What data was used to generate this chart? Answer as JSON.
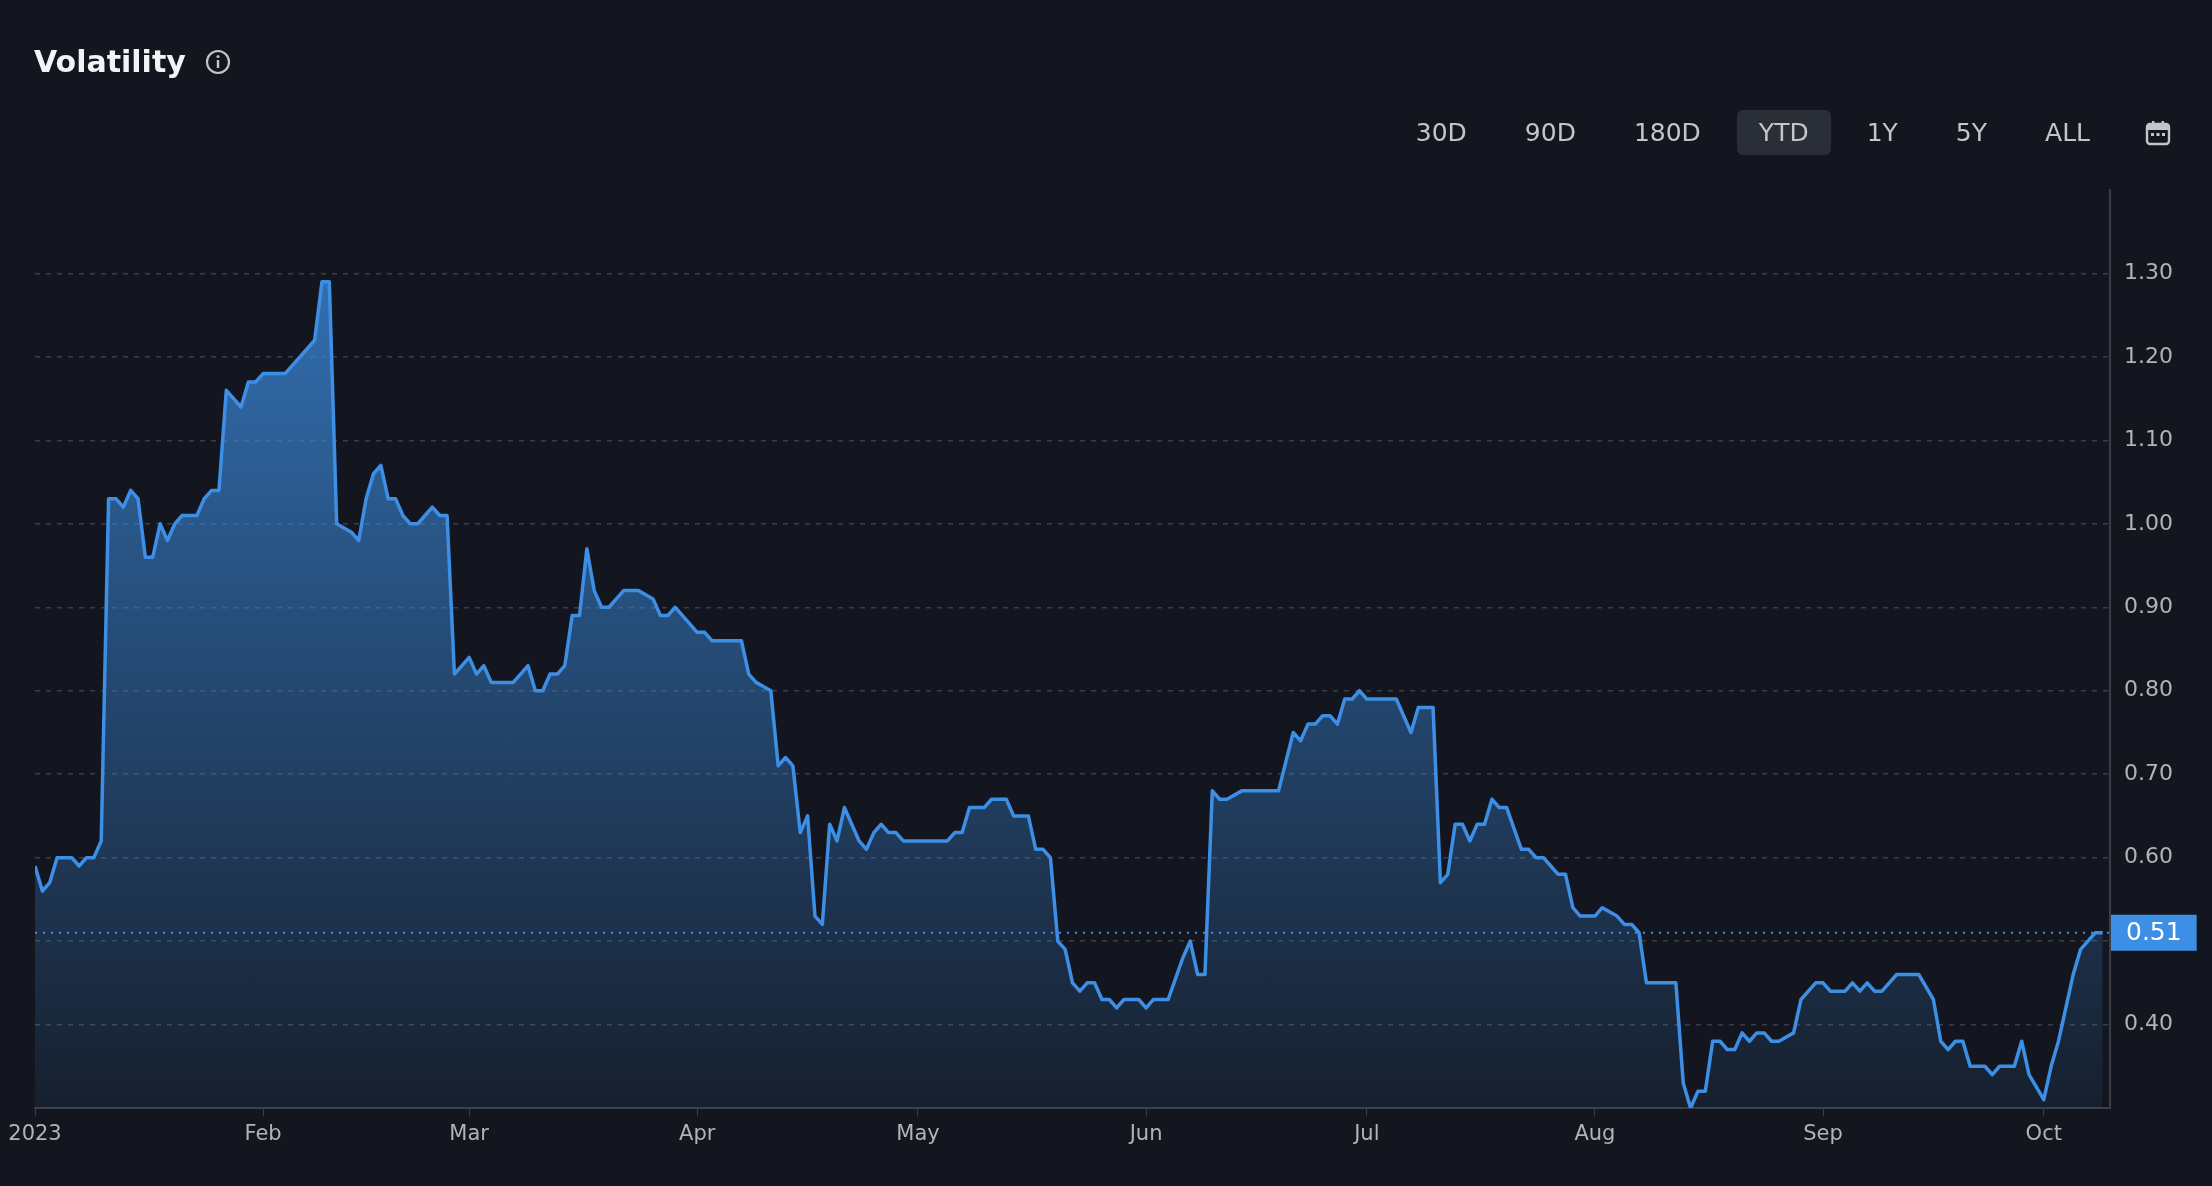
{
  "chart_data": {
    "type": "area",
    "title": "Volatility",
    "color": "#3d8fe6",
    "annotations": [
      "30D",
      "90D",
      "180D",
      "YTD",
      "1Y",
      "5Y",
      "ALL"
    ],
    "x": [
      "2023-01-01",
      "2023-01-02",
      "2023-01-03",
      "2023-01-04",
      "2023-01-06",
      "2023-01-07",
      "2023-01-08",
      "2023-01-09",
      "2023-01-10",
      "2023-01-11",
      "2023-01-12",
      "2023-01-13",
      "2023-01-14",
      "2023-01-15",
      "2023-01-16",
      "2023-01-17",
      "2023-01-18",
      "2023-01-19",
      "2023-01-20",
      "2023-01-21",
      "2023-01-23",
      "2023-01-24",
      "2023-01-25",
      "2023-01-26",
      "2023-01-27",
      "2023-01-28",
      "2023-01-29",
      "2023-01-30",
      "2023-01-31",
      "2023-02-01",
      "2023-02-03",
      "2023-02-04",
      "2023-02-06",
      "2023-02-07",
      "2023-02-08",
      "2023-02-09",
      "2023-02-10",
      "2023-02-11",
      "2023-02-13",
      "2023-02-14",
      "2023-02-15",
      "2023-02-16",
      "2023-02-17",
      "2023-02-18",
      "2023-02-19",
      "2023-02-20",
      "2023-02-21",
      "2023-02-22",
      "2023-02-23",
      "2023-02-24",
      "2023-02-25",
      "2023-02-26",
      "2023-02-27",
      "2023-03-01",
      "2023-03-02",
      "2023-03-03",
      "2023-03-04",
      "2023-03-05",
      "2023-03-06",
      "2023-03-07",
      "2023-03-08",
      "2023-03-09",
      "2023-03-10",
      "2023-03-11",
      "2023-03-12",
      "2023-03-13",
      "2023-03-14",
      "2023-03-15",
      "2023-03-16",
      "2023-03-17",
      "2023-03-18",
      "2023-03-19",
      "2023-03-20",
      "2023-03-21",
      "2023-03-22",
      "2023-03-23",
      "2023-03-24",
      "2023-03-26",
      "2023-03-27",
      "2023-03-28",
      "2023-03-29",
      "2023-03-30",
      "2023-04-01",
      "2023-04-02",
      "2023-04-03",
      "2023-04-04",
      "2023-04-05",
      "2023-04-07",
      "2023-04-08",
      "2023-04-09",
      "2023-04-11",
      "2023-04-12",
      "2023-04-13",
      "2023-04-14",
      "2023-04-15",
      "2023-04-16",
      "2023-04-17",
      "2023-04-18",
      "2023-04-19",
      "2023-04-20",
      "2023-04-21",
      "2023-04-22",
      "2023-04-23",
      "2023-04-24",
      "2023-04-25",
      "2023-04-26",
      "2023-04-27",
      "2023-04-28",
      "2023-04-29",
      "2023-04-30",
      "2023-05-02",
      "2023-05-03",
      "2023-05-04",
      "2023-05-05",
      "2023-05-06",
      "2023-05-07",
      "2023-05-08",
      "2023-05-10",
      "2023-05-11",
      "2023-05-13",
      "2023-05-14",
      "2023-05-15",
      "2023-05-16",
      "2023-05-17",
      "2023-05-18",
      "2023-05-19",
      "2023-05-20",
      "2023-05-21",
      "2023-05-22",
      "2023-05-23",
      "2023-05-24",
      "2023-05-25",
      "2023-05-26",
      "2023-05-27",
      "2023-05-28",
      "2023-05-29",
      "2023-05-31",
      "2023-06-01",
      "2023-06-02",
      "2023-06-03",
      "2023-06-04",
      "2023-06-06",
      "2023-06-07",
      "2023-06-08",
      "2023-06-09",
      "2023-06-10",
      "2023-06-11",
      "2023-06-12",
      "2023-06-14",
      "2023-06-15",
      "2023-06-16",
      "2023-06-18",
      "2023-06-19",
      "2023-06-21",
      "2023-06-22",
      "2023-06-23",
      "2023-06-24",
      "2023-06-25",
      "2023-06-26",
      "2023-06-27",
      "2023-06-28",
      "2023-06-29",
      "2023-06-30",
      "2023-07-01",
      "2023-07-02",
      "2023-07-03",
      "2023-07-05",
      "2023-07-07",
      "2023-07-08",
      "2023-07-10",
      "2023-07-11",
      "2023-07-12",
      "2023-07-13",
      "2023-07-14",
      "2023-07-15",
      "2023-07-16",
      "2023-07-17",
      "2023-07-18",
      "2023-07-19",
      "2023-07-20",
      "2023-07-22",
      "2023-07-23",
      "2023-07-24",
      "2023-07-25",
      "2023-07-26",
      "2023-07-27",
      "2023-07-28",
      "2023-07-29",
      "2023-07-30",
      "2023-07-31",
      "2023-08-01",
      "2023-08-02",
      "2023-08-04",
      "2023-08-05",
      "2023-08-06",
      "2023-08-07",
      "2023-08-08",
      "2023-08-10",
      "2023-08-11",
      "2023-08-12",
      "2023-08-13",
      "2023-08-14",
      "2023-08-15",
      "2023-08-16",
      "2023-08-17",
      "2023-08-18",
      "2023-08-19",
      "2023-08-20",
      "2023-08-21",
      "2023-08-22",
      "2023-08-23",
      "2023-08-24",
      "2023-08-25",
      "2023-08-26",
      "2023-08-28",
      "2023-08-29",
      "2023-08-31",
      "2023-09-01",
      "2023-09-02",
      "2023-09-04",
      "2023-09-05",
      "2023-09-06",
      "2023-09-07",
      "2023-09-08",
      "2023-09-09",
      "2023-09-10",
      "2023-09-11",
      "2023-09-12",
      "2023-09-13",
      "2023-09-14",
      "2023-09-16",
      "2023-09-17",
      "2023-09-18",
      "2023-09-19",
      "2023-09-20",
      "2023-09-21",
      "2023-09-22",
      "2023-09-23",
      "2023-09-24",
      "2023-09-25",
      "2023-09-27",
      "2023-09-28",
      "2023-09-29",
      "2023-10-01",
      "2023-10-02",
      "2023-10-03",
      "2023-10-04",
      "2023-10-05",
      "2023-10-06",
      "2023-10-07",
      "2023-10-08",
      "2023-10-09"
    ],
    "values": [
      0.59,
      0.56,
      0.57,
      0.6,
      0.6,
      0.59,
      0.6,
      0.6,
      0.62,
      1.03,
      1.03,
      1.02,
      1.04,
      1.03,
      0.96,
      0.96,
      1.0,
      0.98,
      1.0,
      1.01,
      1.01,
      1.03,
      1.04,
      1.04,
      1.16,
      1.15,
      1.14,
      1.17,
      1.17,
      1.18,
      1.18,
      1.18,
      1.2,
      1.21,
      1.22,
      1.29,
      1.29,
      1.0,
      0.99,
      0.98,
      1.03,
      1.06,
      1.07,
      1.03,
      1.03,
      1.01,
      1.0,
      1.0,
      1.01,
      1.02,
      1.01,
      1.01,
      0.82,
      0.84,
      0.82,
      0.83,
      0.81,
      0.81,
      0.81,
      0.81,
      0.82,
      0.83,
      0.8,
      0.8,
      0.82,
      0.82,
      0.83,
      0.89,
      0.89,
      0.97,
      0.92,
      0.9,
      0.9,
      0.91,
      0.92,
      0.92,
      0.92,
      0.91,
      0.89,
      0.89,
      0.9,
      0.89,
      0.87,
      0.87,
      0.86,
      0.86,
      0.86,
      0.86,
      0.82,
      0.81,
      0.8,
      0.71,
      0.72,
      0.71,
      0.63,
      0.65,
      0.53,
      0.52,
      0.64,
      0.62,
      0.66,
      0.64,
      0.62,
      0.61,
      0.63,
      0.64,
      0.63,
      0.63,
      0.62,
      0.62,
      0.62,
      0.62,
      0.62,
      0.62,
      0.63,
      0.63,
      0.66,
      0.66,
      0.67,
      0.67,
      0.65,
      0.65,
      0.65,
      0.61,
      0.61,
      0.6,
      0.5,
      0.49,
      0.45,
      0.44,
      0.45,
      0.45,
      0.43,
      0.43,
      0.42,
      0.43,
      0.43,
      0.42,
      0.43,
      0.43,
      0.43,
      0.48,
      0.5,
      0.46,
      0.46,
      0.68,
      0.67,
      0.67,
      0.68,
      0.68,
      0.68,
      0.68,
      0.68,
      0.75,
      0.74,
      0.76,
      0.76,
      0.77,
      0.77,
      0.76,
      0.79,
      0.79,
      0.8,
      0.79,
      0.79,
      0.79,
      0.79,
      0.75,
      0.78,
      0.78,
      0.57,
      0.58,
      0.64,
      0.64,
      0.62,
      0.64,
      0.64,
      0.67,
      0.66,
      0.66,
      0.61,
      0.61,
      0.6,
      0.6,
      0.59,
      0.58,
      0.58,
      0.54,
      0.53,
      0.53,
      0.53,
      0.54,
      0.53,
      0.52,
      0.52,
      0.51,
      0.45,
      0.45,
      0.45,
      0.45,
      0.33,
      0.3,
      0.32,
      0.32,
      0.38,
      0.38,
      0.37,
      0.37,
      0.39,
      0.38,
      0.39,
      0.39,
      0.38,
      0.38,
      0.39,
      0.43,
      0.45,
      0.45,
      0.44,
      0.44,
      0.45,
      0.44,
      0.45,
      0.44,
      0.44,
      0.45,
      0.46,
      0.46,
      0.46,
      0.46,
      0.43,
      0.38,
      0.37,
      0.38,
      0.38,
      0.35,
      0.35,
      0.35,
      0.34,
      0.35,
      0.35,
      0.38,
      0.34,
      0.31,
      0.35,
      0.38,
      0.42,
      0.46,
      0.49,
      0.5,
      0.51,
      0.51
    ],
    "xlim": [
      "2023-01-01",
      "2023-10-10"
    ],
    "xticks": [
      {
        "value": "2023-01-01",
        "label": "2023"
      },
      {
        "value": "2023-02-01",
        "label": "Feb"
      },
      {
        "value": "2023-03-01",
        "label": "Mar"
      },
      {
        "value": "2023-04-01",
        "label": "Apr"
      },
      {
        "value": "2023-05-01",
        "label": "May"
      },
      {
        "value": "2023-06-01",
        "label": "Jun"
      },
      {
        "value": "2023-07-01",
        "label": "Jul"
      },
      {
        "value": "2023-08-01",
        "label": "Aug"
      },
      {
        "value": "2023-09-01",
        "label": "Sep"
      },
      {
        "value": "2023-10-01",
        "label": "Oct"
      }
    ],
    "ylim": [
      0.3,
      1.4
    ],
    "yticks": [
      {
        "value": 0.4,
        "label": "0.40"
      },
      {
        "value": 0.5,
        "label": null
      },
      {
        "value": 0.6,
        "label": "0.60"
      },
      {
        "value": 0.7,
        "label": "0.70"
      },
      {
        "value": 0.8,
        "label": "0.80"
      },
      {
        "value": 0.9,
        "label": "0.90"
      },
      {
        "value": 1.0,
        "label": "1.00"
      },
      {
        "value": 1.1,
        "label": "1.10"
      },
      {
        "value": 1.2,
        "label": "1.20"
      },
      {
        "value": 1.3,
        "label": "1.30"
      }
    ],
    "ref_lines": [
      {
        "axis": "y",
        "value": 0.51,
        "label": "0.51",
        "color": "#3d8fe6",
        "line_style": "dotted"
      }
    ],
    "grid": "y"
  }
}
